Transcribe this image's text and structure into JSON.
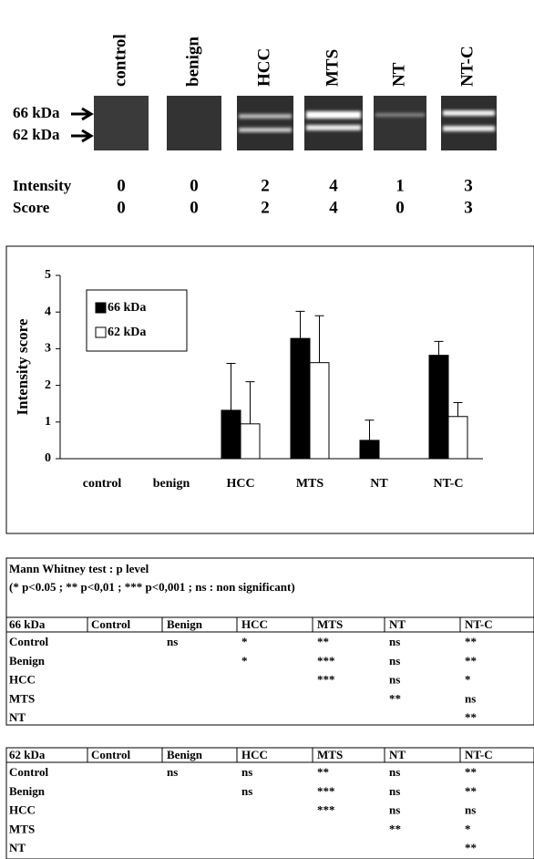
{
  "gel": {
    "lanes": [
      "control",
      "benign",
      "HCC",
      "MTS",
      "NT",
      "NT-C"
    ],
    "markers": [
      "66 kDa",
      "62 kDa"
    ],
    "rows": [
      {
        "label": "Intensity",
        "values": [
          0,
          0,
          2,
          4,
          1,
          3
        ]
      },
      {
        "label": "Score",
        "values": [
          0,
          0,
          2,
          4,
          0,
          3
        ]
      }
    ]
  },
  "chart_data": {
    "type": "bar",
    "categories": [
      "control",
      "benign",
      "HCC",
      "MTS",
      "NT",
      "NT-C"
    ],
    "series": [
      {
        "name": "66 kDa",
        "color": "#000000",
        "values": [
          0,
          0,
          1.32,
          3.28,
          0.5,
          2.82
        ],
        "errors": [
          0,
          0,
          1.28,
          0.74,
          0.55,
          0.38
        ]
      },
      {
        "name": "62 kDa",
        "color": "#ffffff",
        "values": [
          0,
          0,
          0.95,
          2.62,
          0,
          1.15
        ],
        "errors": [
          0,
          0,
          1.15,
          1.28,
          0,
          0.38
        ]
      }
    ],
    "ylabel": "Intensity score",
    "ylim": [
      0,
      5
    ],
    "yticks": [
      0,
      1,
      2,
      3,
      4,
      5
    ],
    "legend": "upper left",
    "grid": false
  },
  "significance": {
    "title": "Mann Whitney test : p level",
    "note": "(* p<0.05 ; ** p<0,01 ; *** p<0,001 ; ns : non significant)",
    "tables": [
      {
        "header": [
          "66 kDa",
          "Control",
          "Benign",
          "HCC",
          "MTS",
          "NT",
          "NT-C"
        ],
        "rows": [
          {
            "label": "Control",
            "cells": [
              null,
              "ns",
              "*",
              "**",
              "ns",
              "**"
            ]
          },
          {
            "label": "Benign",
            "cells": [
              null,
              null,
              "*",
              "***",
              "ns",
              "**"
            ]
          },
          {
            "label": "HCC",
            "cells": [
              null,
              null,
              null,
              "***",
              "ns",
              "*"
            ]
          },
          {
            "label": "MTS",
            "cells": [
              null,
              null,
              null,
              null,
              "**",
              "ns"
            ]
          },
          {
            "label": "NT",
            "cells": [
              null,
              null,
              null,
              null,
              null,
              "**"
            ]
          }
        ]
      },
      {
        "header": [
          "62 kDa",
          "Control",
          "Benign",
          "HCC",
          "MTS",
          "NT",
          "NT-C"
        ],
        "rows": [
          {
            "label": "Control",
            "cells": [
              null,
              "ns",
              "ns",
              "**",
              "ns",
              "**"
            ]
          },
          {
            "label": "Benign",
            "cells": [
              null,
              null,
              "ns",
              "***",
              "ns",
              "**"
            ]
          },
          {
            "label": "HCC",
            "cells": [
              null,
              null,
              null,
              "***",
              "ns",
              "ns"
            ]
          },
          {
            "label": "MTS",
            "cells": [
              null,
              null,
              null,
              null,
              "**",
              "*"
            ]
          },
          {
            "label": "NT",
            "cells": [
              null,
              null,
              null,
              null,
              null,
              "**"
            ]
          }
        ]
      }
    ]
  }
}
